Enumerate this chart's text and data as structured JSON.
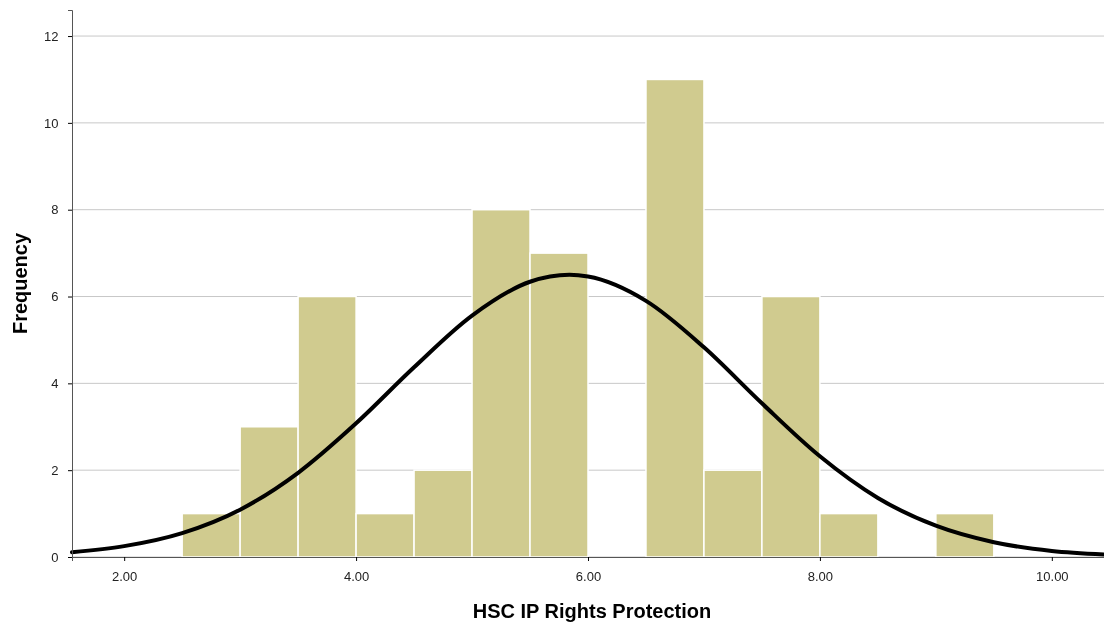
{
  "chart_data": {
    "type": "histogram",
    "xlabel": "HSC IP Rights Protection",
    "ylabel": "Frequency",
    "bins": [
      2.5,
      3.0,
      3.5,
      4.0,
      4.5,
      5.0,
      5.5,
      6.0,
      6.5,
      7.0,
      7.5,
      8.0,
      8.5,
      9.0,
      9.5
    ],
    "series": [
      {
        "color": "#d0cb8f",
        "values": [
          1,
          3,
          6,
          1,
          2,
          8,
          7,
          0,
          11,
          2,
          6,
          1,
          0,
          1
        ]
      },
      {
        "type": "line",
        "color": "#000000",
        "x": [
          1.55,
          2.0,
          2.5,
          3.0,
          3.5,
          4.0,
          4.5,
          5.0,
          5.5,
          5.84,
          6.0,
          6.5,
          7.0,
          7.5,
          8.0,
          8.5,
          9.0,
          9.5,
          10.0,
          10.45
        ],
        "values": [
          0.11,
          0.25,
          0.55,
          1.09,
          1.94,
          3.08,
          4.37,
          5.56,
          6.34,
          6.5,
          6.46,
          5.9,
          4.83,
          3.54,
          2.32,
          1.36,
          0.72,
          0.34,
          0.14,
          0.06
        ]
      }
    ],
    "xlim": [
      1.55,
      10.45
    ],
    "ylim": [
      0,
      12.6
    ],
    "xticks": [
      {
        "value": 2,
        "label": "2.00"
      },
      {
        "value": 4,
        "label": "4.00"
      },
      {
        "value": 6,
        "label": "6.00"
      },
      {
        "value": 8,
        "label": "8.00"
      },
      {
        "value": 10,
        "label": "10.00"
      }
    ],
    "yticks": [
      0,
      2,
      4,
      6,
      8,
      10,
      12
    ],
    "grid": "y"
  }
}
